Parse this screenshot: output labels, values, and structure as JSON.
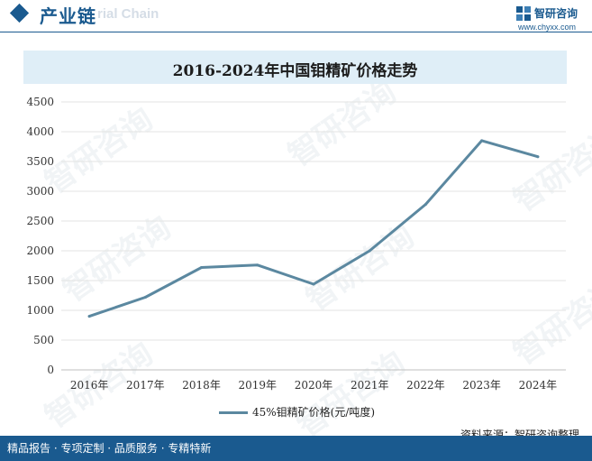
{
  "header": {
    "title": "产业链",
    "watermark_text": "rial Chain",
    "logo_name": "智研咨询",
    "logo_url": "www.chyxx.com",
    "accent_color": "#1a5a8f"
  },
  "chart_data": {
    "type": "line",
    "title": "2016-2024年中国钼精矿价格走势",
    "categories": [
      "2016年",
      "2017年",
      "2018年",
      "2019年",
      "2020年",
      "2021年",
      "2022年",
      "2023年",
      "2024年"
    ],
    "series": [
      {
        "name": "45%钼精矿价格(元/吨度)",
        "color": "#5b88a0",
        "values": [
          900,
          1220,
          1720,
          1760,
          1440,
          2000,
          2780,
          3850,
          3580
        ]
      }
    ],
    "yticks": [
      "0",
      "500",
      "1000",
      "1500",
      "2000",
      "2500",
      "3000",
      "3500",
      "4000",
      "4500"
    ],
    "ylim": [
      0,
      4500
    ],
    "grid": true,
    "legend_position": "bottom"
  },
  "watermark": "智研咨询",
  "source_text": "资料来源：智研咨询整理",
  "footer_text": "精品报告 · 专项定制 · 品质服务 · 专精特新"
}
